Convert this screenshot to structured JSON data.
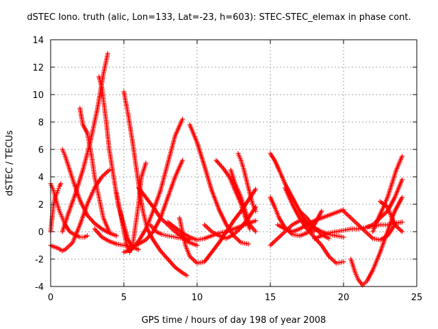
{
  "chart_data": {
    "type": "scatter",
    "title": "dSTEC Iono. truth (alic, Lon=133, Lat=-23, h=603): STEC-STEC_elemax in phase cont.",
    "xlabel": "GPS time / hours of day 198 of year 2008",
    "ylabel": "dSTEC  / TECUs",
    "xlim": [
      0,
      25
    ],
    "ylim": [
      -4,
      14
    ],
    "xticks": [
      0,
      5,
      10,
      15,
      20,
      25
    ],
    "yticks": [
      -4,
      -2,
      0,
      2,
      4,
      6,
      8,
      10,
      12,
      14
    ],
    "grid": true,
    "marker": "+",
    "color": "#ff0000",
    "series": [
      {
        "x": [
          0.0,
          0.1,
          0.2,
          0.3,
          0.5,
          0.6,
          0.7
        ],
        "y": [
          0.0,
          1.0,
          2.0,
          2.5,
          3.0,
          3.3,
          3.5
        ]
      },
      {
        "x": [
          0.0,
          0.2,
          0.4,
          0.6,
          0.8,
          1.0,
          1.3,
          1.6,
          2.0,
          2.3,
          2.5
        ],
        "y": [
          3.5,
          3.0,
          2.2,
          1.5,
          1.0,
          0.5,
          0.0,
          -0.2,
          -0.4,
          -0.4,
          -0.3
        ]
      },
      {
        "x": [
          0.0,
          0.2,
          0.5,
          0.8,
          1.0,
          1.5,
          2.0,
          2.5,
          3.0,
          3.5,
          4.0
        ],
        "y": [
          -1.0,
          -1.1,
          -1.2,
          -1.4,
          -1.3,
          -0.8,
          0.5,
          2.0,
          3.2,
          4.0,
          4.5
        ]
      },
      {
        "x": [
          0.8,
          1.0,
          1.3,
          1.6,
          2.0,
          2.5,
          3.0,
          3.5,
          4.0,
          4.5
        ],
        "y": [
          6.0,
          5.5,
          4.5,
          3.5,
          2.3,
          1.2,
          0.6,
          0.2,
          -0.1,
          -0.3
        ]
      },
      {
        "x": [
          0.8,
          1.2,
          1.7,
          2.2,
          2.7,
          3.2,
          3.6,
          3.9
        ],
        "y": [
          0.0,
          1.3,
          2.8,
          4.5,
          6.5,
          9.0,
          11.5,
          13.0
        ]
      },
      {
        "x": [
          2.0,
          2.2,
          2.5,
          2.8,
          3.0,
          3.3,
          3.6,
          4.0
        ],
        "y": [
          9.0,
          7.8,
          7.2,
          5.5,
          4.0,
          2.5,
          1.0,
          0.0
        ]
      },
      {
        "x": [
          3.3,
          3.5,
          3.8,
          4.0,
          4.3,
          4.6,
          5.0,
          5.3,
          5.6
        ],
        "y": [
          11.3,
          10.5,
          8.0,
          6.0,
          4.0,
          2.0,
          0.5,
          -0.6,
          -1.2
        ]
      },
      {
        "x": [
          3.0,
          3.5,
          4.0,
          4.5,
          5.0,
          5.5,
          6.0
        ],
        "y": [
          0.2,
          -0.4,
          -0.7,
          -0.9,
          -1.0,
          -1.1,
          -1.3
        ]
      },
      {
        "x": [
          5.0,
          5.3,
          5.6,
          6.0,
          6.3,
          6.6,
          7.0,
          7.5,
          8.0,
          8.5,
          9.0,
          9.3
        ],
        "y": [
          10.2,
          8.5,
          6.5,
          3.5,
          1.5,
          0.2,
          -0.6,
          -1.4,
          -2.0,
          -2.6,
          -3.0,
          -3.2
        ]
      },
      {
        "x": [
          4.5,
          4.8,
          5.0,
          5.2,
          5.4,
          5.6,
          5.8,
          6.0,
          6.2,
          6.5
        ],
        "y": [
          2.8,
          1.2,
          0.0,
          -1.0,
          -1.5,
          -1.0,
          0.5,
          2.0,
          4.0,
          5.0
        ]
      },
      {
        "x": [
          5.0,
          5.5,
          6.0,
          6.5,
          7.0,
          7.5,
          8.0,
          8.5,
          9.0
        ],
        "y": [
          -1.5,
          -1.3,
          -0.7,
          0.2,
          1.5,
          3.0,
          5.0,
          7.0,
          8.2
        ]
      },
      {
        "x": [
          6.0,
          6.5,
          7.0,
          7.5,
          8.0,
          8.5,
          9.0,
          9.5
        ],
        "y": [
          3.2,
          2.5,
          1.8,
          1.0,
          0.5,
          0.0,
          -0.4,
          -0.6
        ]
      },
      {
        "x": [
          5.5,
          6.0,
          6.5,
          7.0,
          7.5,
          8.0,
          8.5,
          9.0
        ],
        "y": [
          -1.2,
          -0.9,
          -0.6,
          0.0,
          1.0,
          2.5,
          4.0,
          5.2
        ]
      },
      {
        "x": [
          6.8,
          7.2,
          7.6,
          8.0,
          8.5,
          9.0,
          9.5,
          10.0
        ],
        "y": [
          0.5,
          0.0,
          -0.2,
          -0.3,
          -0.4,
          -0.5,
          -0.8,
          -1.0
        ]
      },
      {
        "x": [
          8.0,
          8.5,
          9.0,
          9.5,
          10.0,
          10.5,
          11.0,
          11.5,
          12.0,
          12.5,
          13.0,
          13.5,
          14.0
        ],
        "y": [
          0.7,
          0.3,
          -0.1,
          -0.4,
          -0.6,
          -0.5,
          -0.3,
          -0.1,
          0.0,
          0.2,
          0.4,
          0.6,
          0.8
        ]
      },
      {
        "x": [
          8.8,
          9.0,
          9.2,
          9.5,
          10.0,
          10.5,
          11.0,
          11.5,
          12.0,
          12.5,
          13.0,
          13.5,
          14.0
        ],
        "y": [
          1.0,
          0.0,
          -1.0,
          -1.8,
          -2.3,
          -2.2,
          -1.5,
          -0.8,
          0.0,
          0.8,
          1.5,
          2.3,
          3.1
        ]
      },
      {
        "x": [
          9.5,
          10.0,
          10.5,
          11.0,
          11.5,
          12.0,
          12.5,
          13.0,
          13.5
        ],
        "y": [
          7.8,
          6.5,
          4.8,
          3.0,
          1.6,
          0.5,
          -0.3,
          -0.8,
          -0.9
        ]
      },
      {
        "x": [
          11.3,
          11.8,
          12.2,
          12.6,
          13.0,
          13.3,
          13.6
        ],
        "y": [
          5.2,
          4.6,
          4.0,
          3.0,
          2.0,
          1.0,
          0.2
        ]
      },
      {
        "x": [
          12.8,
          13.0,
          13.2,
          13.5,
          13.8,
          14.0
        ],
        "y": [
          5.7,
          5.2,
          4.5,
          3.2,
          2.0,
          1.5
        ]
      },
      {
        "x": [
          12.3,
          12.6,
          13.0,
          13.3,
          13.6,
          14.0
        ],
        "y": [
          4.5,
          3.5,
          2.5,
          1.5,
          0.5,
          0.0
        ]
      },
      {
        "x": [
          10.5,
          11.0,
          11.5,
          12.0,
          12.5,
          13.0,
          13.5,
          14.0
        ],
        "y": [
          0.5,
          0.0,
          -0.3,
          -0.5,
          -0.2,
          0.3,
          1.0,
          1.8
        ]
      },
      {
        "x": [
          15.0,
          15.3,
          15.6,
          16.0,
          16.5,
          17.0,
          17.5,
          18.0
        ],
        "y": [
          5.7,
          5.2,
          4.5,
          3.5,
          2.5,
          1.5,
          0.5,
          0.0
        ]
      },
      {
        "x": [
          15.0,
          15.3,
          15.6,
          16.0,
          16.5,
          17.0,
          17.5,
          18.0,
          18.5
        ],
        "y": [
          2.5,
          1.8,
          1.0,
          0.3,
          -0.2,
          -0.3,
          -0.1,
          0.5,
          1.5
        ]
      },
      {
        "x": [
          15.0,
          15.5,
          16.0,
          16.5,
          17.0,
          17.5,
          18.0,
          18.5,
          19.0,
          19.5,
          20.0
        ],
        "y": [
          -1.0,
          -0.5,
          0.0,
          0.5,
          0.8,
          0.7,
          0.3,
          0.0,
          -0.2,
          -0.3,
          -0.4
        ]
      },
      {
        "x": [
          16.0,
          16.5,
          17.0,
          17.5,
          18.0,
          18.5,
          19.0,
          19.5,
          20.0
        ],
        "y": [
          3.2,
          2.0,
          1.0,
          0.2,
          -0.4,
          -1.0,
          -1.8,
          -2.3,
          -2.2
        ]
      },
      {
        "x": [
          15.5,
          16.0,
          16.5,
          17.0,
          17.5,
          18.0,
          18.5,
          19.0,
          19.5,
          20.0
        ],
        "y": [
          0.5,
          0.2,
          0.0,
          0.2,
          0.5,
          0.8,
          1.0,
          1.2,
          1.4,
          1.6
        ]
      },
      {
        "x": [
          17.0,
          17.5,
          18.0,
          18.5,
          19.0
        ],
        "y": [
          1.5,
          1.0,
          0.3,
          -0.2,
          -0.5
        ]
      },
      {
        "x": [
          18.0,
          18.5,
          19.0,
          19.5,
          20.0,
          20.5,
          21.0,
          21.5,
          22.0,
          22.5,
          23.0,
          23.5,
          24.0
        ],
        "y": [
          -0.5,
          -0.3,
          -0.1,
          0.0,
          0.1,
          0.2,
          0.2,
          0.3,
          0.4,
          0.5,
          0.5,
          0.6,
          0.7
        ]
      },
      {
        "x": [
          20.5,
          20.8,
          21.0,
          21.3,
          21.6,
          22.0,
          22.5,
          23.0,
          23.5,
          24.0
        ],
        "y": [
          -2.0,
          -3.0,
          -3.5,
          -3.9,
          -3.6,
          -2.8,
          -1.5,
          0.0,
          1.5,
          2.5
        ]
      },
      {
        "x": [
          20.0,
          20.5,
          21.0,
          21.5,
          22.0,
          22.5,
          23.0,
          23.5
        ],
        "y": [
          1.5,
          1.0,
          0.5,
          0.0,
          -0.5,
          -0.6,
          -0.3,
          0.5
        ]
      },
      {
        "x": [
          22.0,
          22.3,
          22.6,
          23.0,
          23.3,
          23.6,
          24.0
        ],
        "y": [
          0.0,
          0.8,
          1.5,
          2.5,
          3.5,
          4.5,
          5.5
        ]
      },
      {
        "x": [
          21.5,
          22.0,
          22.5,
          23.0,
          23.5,
          24.0
        ],
        "y": [
          0.3,
          0.5,
          1.0,
          1.5,
          2.5,
          3.8
        ]
      },
      {
        "x": [
          22.5,
          23.0,
          23.3,
          23.6,
          24.0
        ],
        "y": [
          2.2,
          1.8,
          1.0,
          0.4,
          0.0
        ]
      }
    ]
  }
}
